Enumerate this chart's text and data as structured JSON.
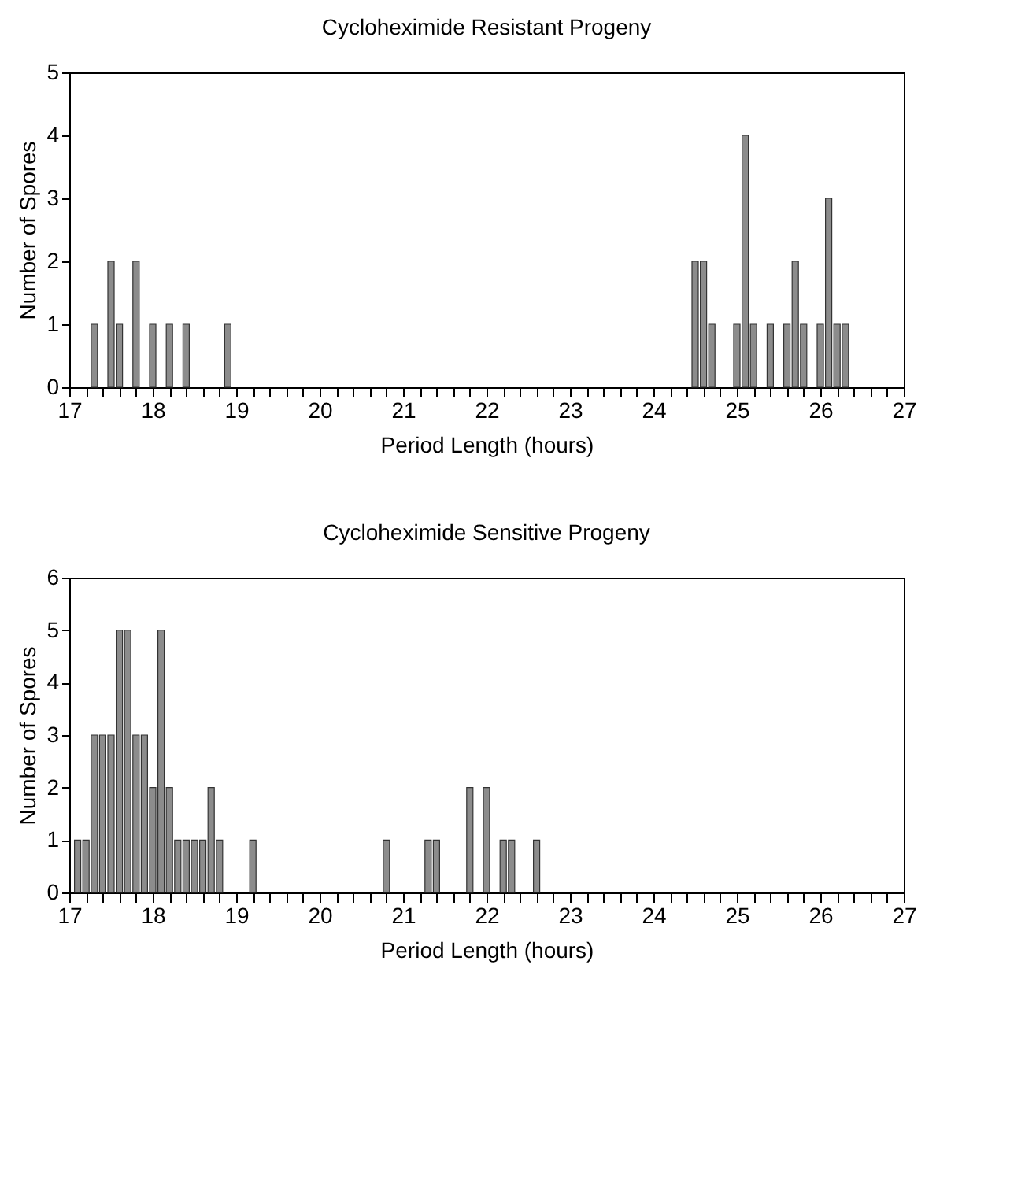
{
  "chart_data": [
    {
      "type": "bar",
      "title": "Cycloheximide Resistant Progeny",
      "xlabel": "Period Length (hours)",
      "ylabel": "Number of Spores",
      "color": "#8c8c8c",
      "x": [
        17.3,
        17.5,
        17.6,
        17.8,
        18.0,
        18.2,
        18.4,
        18.9,
        24.5,
        24.6,
        24.7,
        25.0,
        25.1,
        25.2,
        25.4,
        25.6,
        25.7,
        25.8,
        26.0,
        26.1,
        26.2,
        26.3
      ],
      "values": [
        1,
        2,
        1,
        2,
        1,
        1,
        1,
        1,
        2,
        2,
        1,
        1,
        4,
        1,
        1,
        1,
        2,
        1,
        1,
        3,
        1,
        1
      ],
      "xlim": [
        17,
        27
      ],
      "ylim": [
        0,
        5
      ],
      "yticks": [
        0,
        1,
        2,
        3,
        4,
        5
      ],
      "xticks": [
        17,
        {
          "value": 17.2,
          "label": null
        },
        {
          "value": 17.4,
          "label": null
        },
        {
          "value": 17.6,
          "label": null
        },
        {
          "value": 17.8,
          "label": null
        },
        18,
        {
          "value": 18.2,
          "label": null
        },
        {
          "value": 18.4,
          "label": null
        },
        {
          "value": 18.6,
          "label": null
        },
        {
          "value": 18.8,
          "label": null
        },
        19,
        {
          "value": 19.2,
          "label": null
        },
        {
          "value": 19.4,
          "label": null
        },
        {
          "value": 19.6,
          "label": null
        },
        {
          "value": 19.8,
          "label": null
        },
        20,
        {
          "value": 20.2,
          "label": null
        },
        {
          "value": 20.4,
          "label": null
        },
        {
          "value": 20.6,
          "label": null
        },
        {
          "value": 20.8,
          "label": null
        },
        21,
        {
          "value": 21.2,
          "label": null
        },
        {
          "value": 21.4,
          "label": null
        },
        {
          "value": 21.6,
          "label": null
        },
        {
          "value": 21.8,
          "label": null
        },
        22,
        {
          "value": 22.2,
          "label": null
        },
        {
          "value": 22.4,
          "label": null
        },
        {
          "value": 22.6,
          "label": null
        },
        {
          "value": 22.8,
          "label": null
        },
        23,
        {
          "value": 23.2,
          "label": null
        },
        {
          "value": 23.4,
          "label": null
        },
        {
          "value": 23.6,
          "label": null
        },
        {
          "value": 23.8,
          "label": null
        },
        24,
        {
          "value": 24.2,
          "label": null
        },
        {
          "value": 24.4,
          "label": null
        },
        {
          "value": 24.6,
          "label": null
        },
        {
          "value": 24.8,
          "label": null
        },
        25,
        {
          "value": 25.2,
          "label": null
        },
        {
          "value": 25.4,
          "label": null
        },
        {
          "value": 25.6,
          "label": null
        },
        {
          "value": 25.8,
          "label": null
        },
        26,
        {
          "value": 26.2,
          "label": null
        },
        {
          "value": 26.4,
          "label": null
        },
        {
          "value": 26.6,
          "label": null
        },
        {
          "value": 26.8,
          "label": null
        },
        27
      ]
    },
    {
      "type": "bar",
      "title": "Cycloheximide Sensitive Progeny",
      "xlabel": "Period Length (hours)",
      "ylabel": "Number of Spores",
      "color": "#8c8c8c",
      "x": [
        17.1,
        17.2,
        17.3,
        17.4,
        17.5,
        17.6,
        17.7,
        17.8,
        17.9,
        18.0,
        18.1,
        18.2,
        18.3,
        18.4,
        18.5,
        18.6,
        18.7,
        18.8,
        19.2,
        20.8,
        21.3,
        21.4,
        21.8,
        22.0,
        22.2,
        22.3,
        22.6
      ],
      "values": [
        1,
        1,
        3,
        3,
        3,
        5,
        5,
        3,
        3,
        2,
        5,
        2,
        1,
        1,
        1,
        1,
        2,
        1,
        1,
        1,
        1,
        1,
        2,
        2,
        1,
        1,
        1
      ],
      "xlim": [
        17,
        27
      ],
      "ylim": [
        0,
        6
      ],
      "yticks": [
        0,
        1,
        2,
        3,
        4,
        5,
        6
      ],
      "xticks": [
        17,
        {
          "value": 17.2,
          "label": null
        },
        {
          "value": 17.4,
          "label": null
        },
        {
          "value": 17.6,
          "label": null
        },
        {
          "value": 17.8,
          "label": null
        },
        18,
        {
          "value": 18.2,
          "label": null
        },
        {
          "value": 18.4,
          "label": null
        },
        {
          "value": 18.6,
          "label": null
        },
        {
          "value": 18.8,
          "label": null
        },
        19,
        {
          "value": 19.2,
          "label": null
        },
        {
          "value": 19.4,
          "label": null
        },
        {
          "value": 19.6,
          "label": null
        },
        {
          "value": 19.8,
          "label": null
        },
        20,
        {
          "value": 20.2,
          "label": null
        },
        {
          "value": 20.4,
          "label": null
        },
        {
          "value": 20.6,
          "label": null
        },
        {
          "value": 20.8,
          "label": null
        },
        21,
        {
          "value": 21.2,
          "label": null
        },
        {
          "value": 21.4,
          "label": null
        },
        {
          "value": 21.6,
          "label": null
        },
        {
          "value": 21.8,
          "label": null
        },
        22,
        {
          "value": 22.2,
          "label": null
        },
        {
          "value": 22.4,
          "label": null
        },
        {
          "value": 22.6,
          "label": null
        },
        {
          "value": 22.8,
          "label": null
        },
        23,
        {
          "value": 23.2,
          "label": null
        },
        {
          "value": 23.4,
          "label": null
        },
        {
          "value": 23.6,
          "label": null
        },
        {
          "value": 23.8,
          "label": null
        },
        24,
        {
          "value": 24.2,
          "label": null
        },
        {
          "value": 24.4,
          "label": null
        },
        {
          "value": 24.6,
          "label": null
        },
        {
          "value": 24.8,
          "label": null
        },
        25,
        {
          "value": 25.2,
          "label": null
        },
        {
          "value": 25.4,
          "label": null
        },
        {
          "value": 25.6,
          "label": null
        },
        {
          "value": 25.8,
          "label": null
        },
        26,
        {
          "value": 26.2,
          "label": null
        },
        {
          "value": 26.4,
          "label": null
        },
        {
          "value": 26.6,
          "label": null
        },
        {
          "value": 26.8,
          "label": null
        },
        27
      ]
    }
  ]
}
